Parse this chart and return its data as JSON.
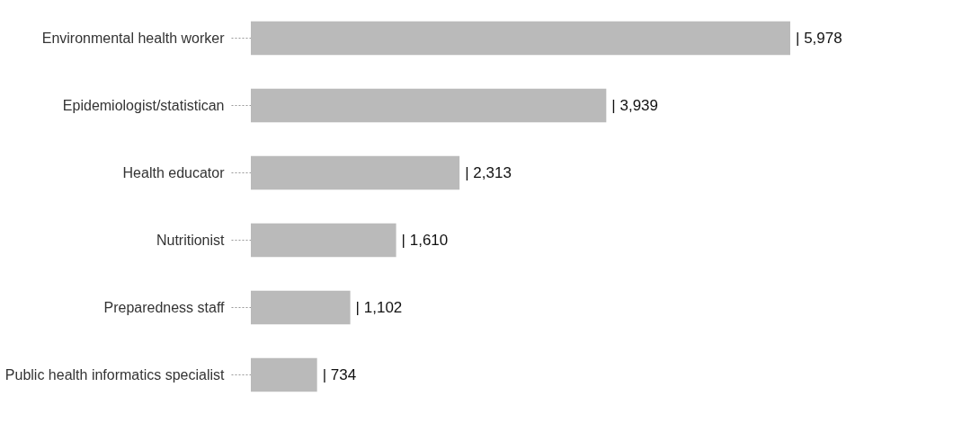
{
  "chart_data": {
    "type": "bar",
    "orientation": "horizontal",
    "categories": [
      "Environmental health worker",
      "Epidemiologist/statistican",
      "Health educator",
      "Nutritionist",
      "Preparedness staff",
      "Public health informatics specialist"
    ],
    "values": [
      5978,
      3939,
      2313,
      1610,
      1102,
      734
    ],
    "color": "#bababa",
    "value_labels": [
      "| 5,978",
      "| 3,939",
      "| 2,313",
      "| 1,610",
      "| 1,102",
      "| 734"
    ],
    "tick_labels": "y",
    "grid": false
  }
}
